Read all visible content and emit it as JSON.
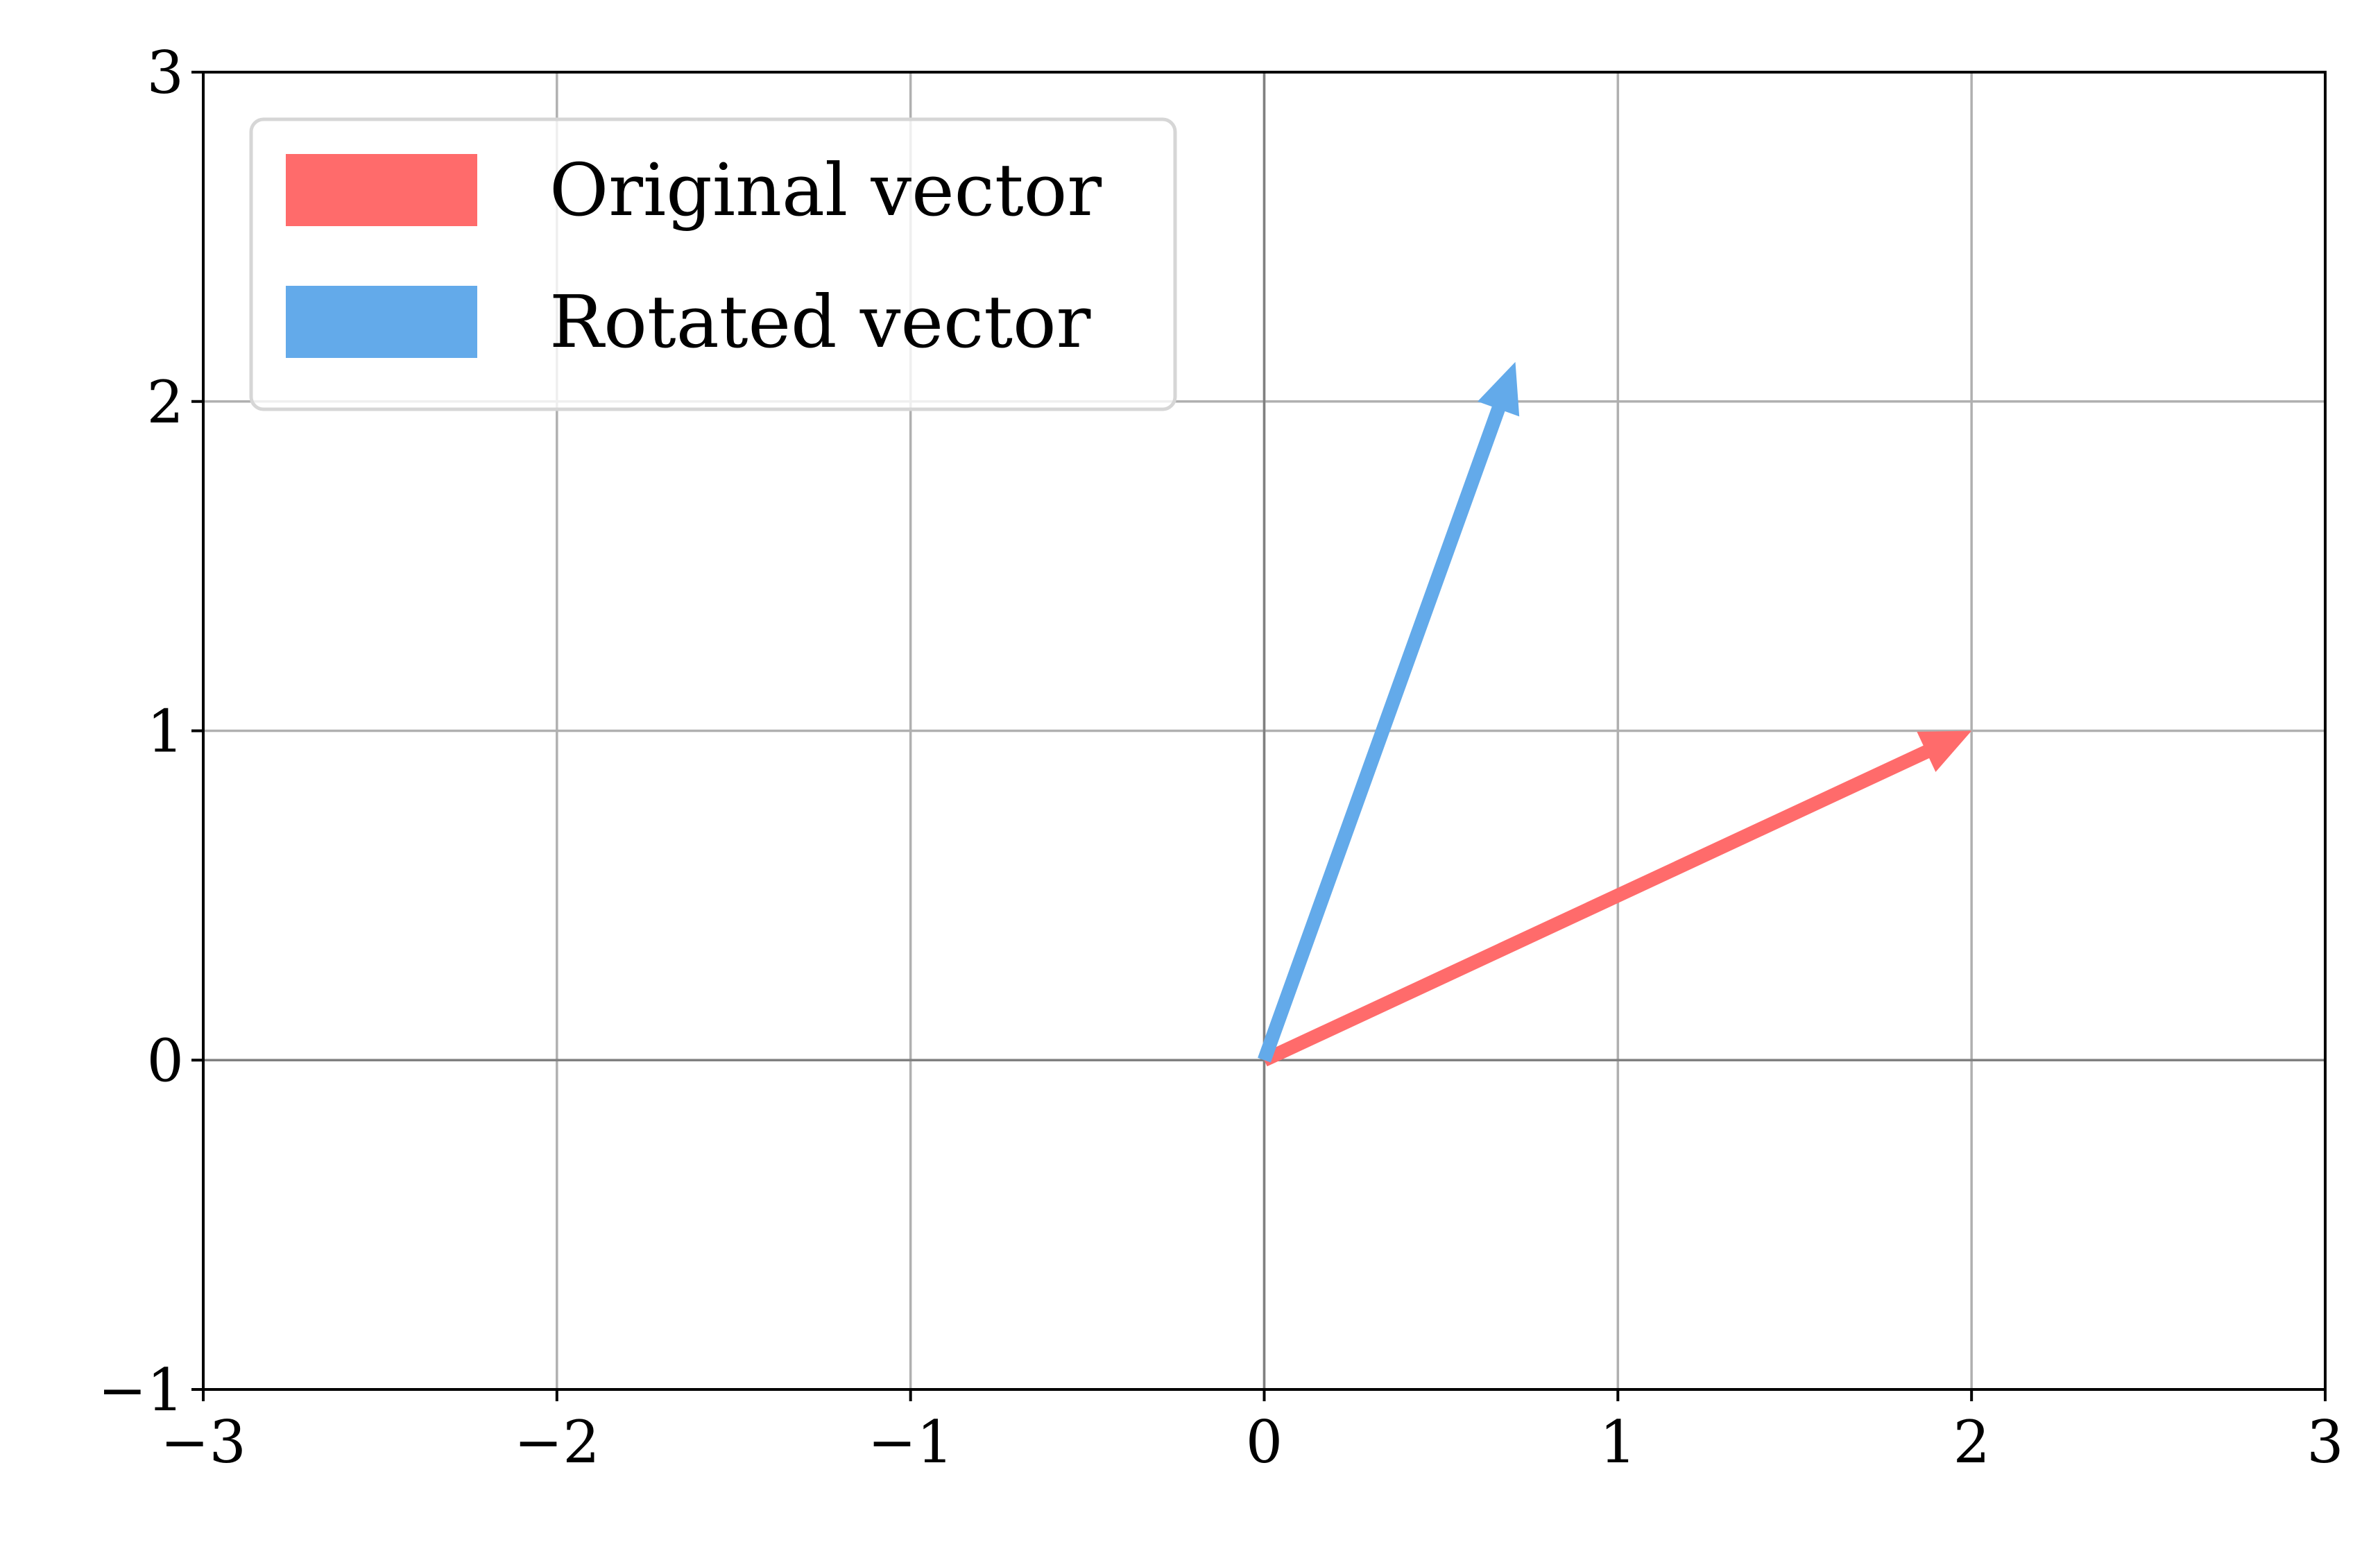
{
  "chart_data": {
    "type": "quiver",
    "title": "",
    "xlabel": "",
    "ylabel": "",
    "xlim": [
      -3,
      3
    ],
    "ylim": [
      -1,
      3
    ],
    "xticks": [
      -3,
      -2,
      -1,
      0,
      1,
      2,
      3
    ],
    "yticks": [
      -1,
      0,
      1,
      2,
      3
    ],
    "xtick_labels": [
      "−3",
      "−2",
      "−1",
      "0",
      "1",
      "2",
      "3"
    ],
    "ytick_labels": [
      "−1",
      "0",
      "1",
      "2",
      "3"
    ],
    "grid": true,
    "axes_lines_at_zero": true,
    "legend_position": "upper-left",
    "series": [
      {
        "name": "Original vector",
        "color": "#ff6b6b",
        "start": [
          0,
          0
        ],
        "end": [
          2,
          1
        ]
      },
      {
        "name": "Rotated vector",
        "color": "#63aaea",
        "start": [
          0,
          0
        ],
        "end": [
          0.71,
          2.12
        ]
      }
    ]
  },
  "colors": {
    "grid": "#b0b0b0",
    "zero_axis": "#808080",
    "frame": "#000000",
    "legend_border": "#d6d6d6"
  }
}
